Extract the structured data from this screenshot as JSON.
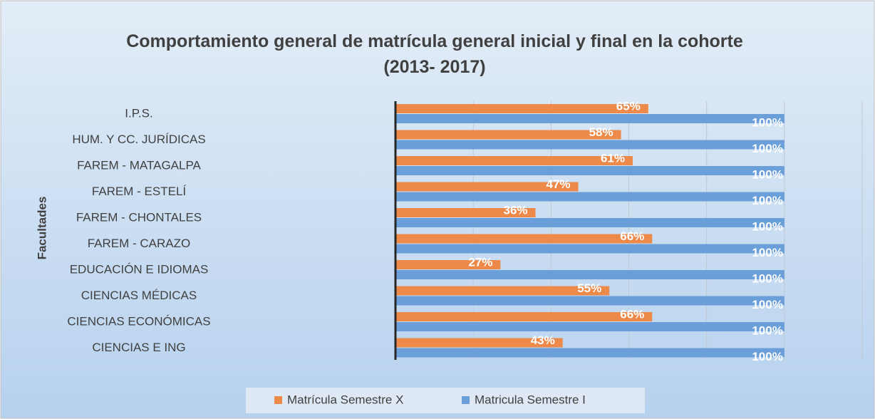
{
  "chart_data": {
    "type": "bar",
    "orientation": "horizontal",
    "title": "Comportamiento general de matrícula general inicial  y final en  la cohorte (2013- 2017)",
    "y_label": "Facultades",
    "categories": [
      "I.P.S.",
      "HUM. Y CC. JURÍDICAS",
      "FAREM - MATAGALPA",
      "FAREM - ESTELÍ",
      "FAREM - CHONTALES",
      "FAREM - CARAZO",
      "EDUCACIÓN E IDIOMAS",
      "CIENCIAS MÉDICAS",
      "CIENCIAS ECONÓMICAS",
      "CIENCIAS E ING"
    ],
    "series": [
      {
        "name": "Matrícula Semestre X",
        "color": "#ed8a4a",
        "values": [
          65,
          58,
          61,
          47,
          36,
          66,
          27,
          55,
          66,
          43
        ],
        "value_labels": [
          "65%",
          "58%",
          "61%",
          "47%",
          "36%",
          "66%",
          "27%",
          "55%",
          "66%",
          "43%"
        ]
      },
      {
        "name": "Matricula Semestre I",
        "color": "#6a9fd9",
        "values": [
          100,
          100,
          100,
          100,
          100,
          100,
          100,
          100,
          100,
          100
        ],
        "value_labels": [
          "100%",
          "100%",
          "100%",
          "100%",
          "100%",
          "100%",
          "100%",
          "100%",
          "100%",
          "100%"
        ]
      }
    ],
    "xlim": [
      0,
      120
    ],
    "xticks": [
      0,
      20,
      40,
      60,
      80,
      100,
      120
    ],
    "grid": true,
    "legend": "bottom"
  }
}
